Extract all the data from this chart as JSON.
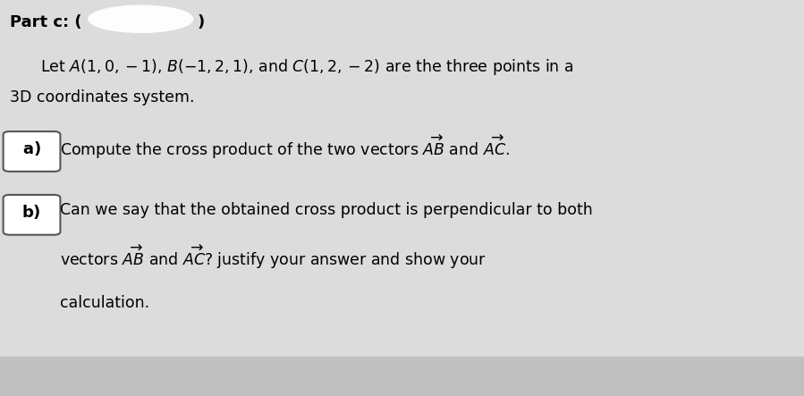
{
  "background_color": "#dcdcdc",
  "title_fontsize": 13,
  "intro_fontsize": 12.5,
  "part_fontsize": 12.5,
  "label_fontsize": 13,
  "box_color": "white",
  "box_edge_color": "#555555",
  "bottom_bar_color": "#c0c0c0",
  "part_a_text": "Compute the cross product of the two vectors $\\overrightarrow{AB}$ and $\\overrightarrow{AC}$.",
  "part_b_line1": "Can we say that the obtained cross product is perpendicular to both",
  "part_b_line2": "vectors $\\overrightarrow{AB}$ and $\\overrightarrow{AC}$? justify your answer and show your",
  "part_b_line3": "calculation.",
  "intro_line1": "Let $A(1, 0, -1)$, $B(-1, 2, 1)$, and $C(1, 2, -2)$ are the three points in a",
  "intro_line2": "3D coordinates system."
}
